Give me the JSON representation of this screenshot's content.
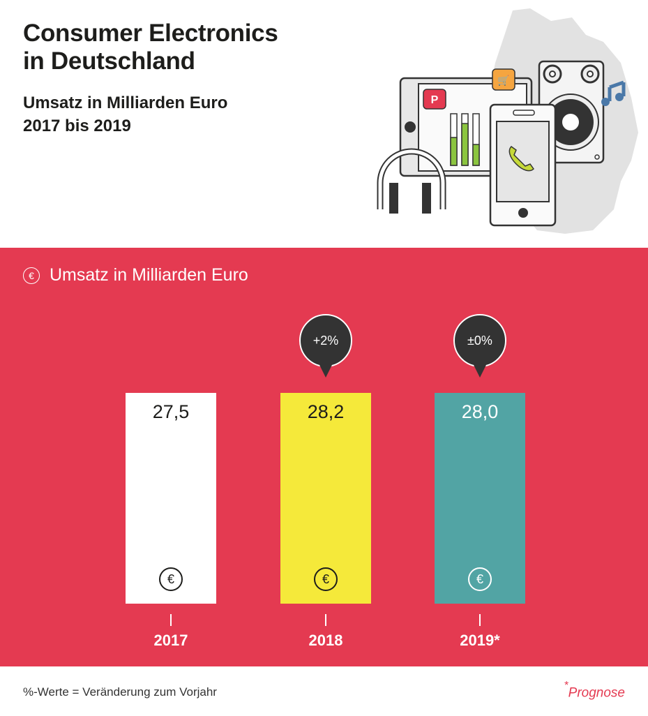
{
  "header": {
    "title_line1": "Consumer Electronics",
    "title_line2": "in Deutschland",
    "subtitle_line1": "Umsatz in Milliarden Euro",
    "subtitle_line2": "2017 bis 2019"
  },
  "illustration": {
    "description": "consumer electronics devices over map of Germany",
    "icons": [
      "tablet-icon",
      "pinterest-icon",
      "cart-icon",
      "equalizer-icon",
      "smartphone-icon",
      "phone-call-icon",
      "speaker-icon",
      "music-note-icon",
      "headphones-icon",
      "germany-map-icon"
    ]
  },
  "panel": {
    "heading": "Umsatz in Milliarden Euro",
    "icon": "euro-icon",
    "background": "#e43a51"
  },
  "chart_data": {
    "type": "bar",
    "title": "Umsatz in Milliarden Euro",
    "categories": [
      "2017",
      "2018",
      "2019*"
    ],
    "values": [
      27.5,
      28.2,
      28.0
    ],
    "value_labels": [
      "27,5",
      "28,2",
      "28,0"
    ],
    "change_labels": [
      null,
      "+2%",
      "±0%"
    ],
    "colors": [
      "#ffffff",
      "#f5e93a",
      "#52a4a4"
    ],
    "unit": "Milliarden Euro",
    "xlabel": "",
    "ylabel": "",
    "grid": false
  },
  "footer": {
    "note": "%-Werte = Veränderung zum Vorjahr",
    "asterisk": "*",
    "prognose": "Prognose"
  }
}
